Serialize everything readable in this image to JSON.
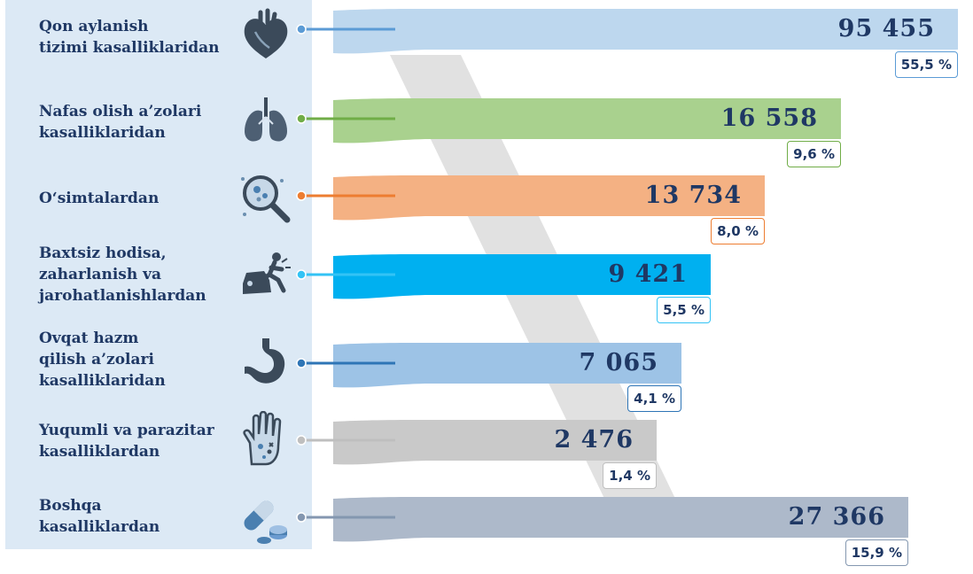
{
  "chart_data": {
    "type": "bar",
    "orientation": "horizontal",
    "categories": [
      "Qon aylanish\ntizimi kasalliklaridan",
      "Nafas olish a’zolari\nkasalliklaridan",
      "O‘simtalardan",
      "Baxtsiz hodisa,\nzaharlanish va\njarohatlanishlardan",
      "Ovqat hazm\nqilish a’zolari\nkasalliklaridan",
      "Yuqumli va parazitar\nkasalliklardan",
      "Boshqa\nkasalliklardan"
    ],
    "values": [
      95455,
      16558,
      13734,
      9421,
      7065,
      2476,
      27366
    ],
    "value_labels": [
      "95 455",
      "16 558",
      "13 734",
      "9 421",
      "7 065",
      "2 476",
      "27 366"
    ],
    "percent_labels": [
      "55,5 %",
      "9,6 %",
      "8,0 %",
      "5,5 %",
      "4,1 %",
      "1,4 %",
      "15,9 %"
    ],
    "colors": [
      "#bdd7ee",
      "#a9d18e",
      "#f4b183",
      "#00b0f0",
      "#9dc3e6",
      "#c9c9c9",
      "#adb9ca"
    ],
    "dot_colors": [
      "#5b9bd5",
      "#70ad47",
      "#ed7d31",
      "#33c3f5",
      "#2e75b6",
      "#bfbfbf",
      "#8497b0"
    ],
    "icons": [
      "heart-icon",
      "lungs-icon",
      "microscope-icon",
      "car-accident-icon",
      "stomach-icon",
      "hand-germs-icon",
      "pills-icon"
    ],
    "text_color": "#1f3864",
    "panel_color": "#dce9f5"
  }
}
